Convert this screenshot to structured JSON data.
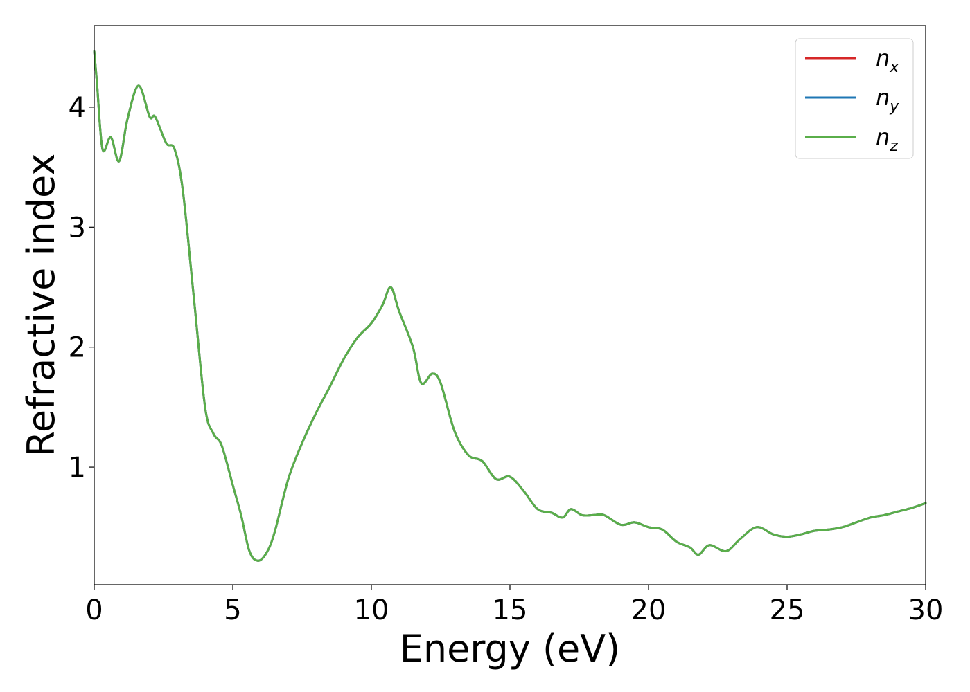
{
  "chart_data": {
    "type": "line",
    "title": "",
    "xlabel": "Energy (eV)",
    "ylabel": "Refractive index",
    "xlim": [
      0,
      30
    ],
    "ylim": [
      0.02,
      4.68
    ],
    "xticks": [
      0,
      5,
      10,
      15,
      20,
      25,
      30
    ],
    "yticks": [
      1,
      2,
      3,
      4
    ],
    "grid": false,
    "legend_position": "top-right",
    "x": [
      0,
      0.1,
      0.3,
      0.6,
      0.9,
      1.2,
      1.6,
      2.0,
      2.2,
      2.6,
      2.9,
      3.2,
      3.6,
      4.0,
      4.3,
      4.6,
      5.0,
      5.3,
      5.6,
      5.9,
      6.2,
      6.5,
      7.0,
      7.5,
      8.0,
      8.5,
      9.0,
      9.5,
      10.0,
      10.4,
      10.7,
      11.0,
      11.5,
      11.8,
      12.2,
      12.5,
      13.0,
      13.5,
      14.0,
      14.5,
      15.0,
      15.5,
      16.0,
      16.5,
      16.9,
      17.2,
      17.6,
      18.0,
      18.4,
      19.0,
      19.5,
      20.0,
      20.5,
      21.0,
      21.5,
      21.8,
      22.2,
      22.8,
      23.3,
      23.9,
      24.5,
      25.0,
      25.5,
      26.0,
      26.5,
      27.0,
      27.5,
      28.0,
      28.5,
      29.0,
      29.5,
      30.0
    ],
    "series": [
      {
        "name": "n_x",
        "color": "#d62728",
        "values": [
          4.47,
          4.2,
          3.65,
          3.75,
          3.55,
          3.9,
          4.18,
          3.92,
          3.92,
          3.7,
          3.65,
          3.3,
          2.4,
          1.5,
          1.28,
          1.18,
          0.85,
          0.6,
          0.3,
          0.22,
          0.28,
          0.45,
          0.9,
          1.2,
          1.45,
          1.67,
          1.9,
          2.08,
          2.2,
          2.35,
          2.5,
          2.3,
          2.0,
          1.7,
          1.78,
          1.7,
          1.3,
          1.1,
          1.05,
          0.9,
          0.92,
          0.8,
          0.65,
          0.62,
          0.58,
          0.65,
          0.6,
          0.6,
          0.6,
          0.52,
          0.54,
          0.5,
          0.48,
          0.38,
          0.33,
          0.27,
          0.35,
          0.3,
          0.4,
          0.5,
          0.44,
          0.42,
          0.44,
          0.47,
          0.48,
          0.5,
          0.54,
          0.58,
          0.6,
          0.63,
          0.66,
          0.7
        ]
      },
      {
        "name": "n_y",
        "color": "#1f77b4",
        "values": [
          4.47,
          4.2,
          3.65,
          3.75,
          3.55,
          3.9,
          4.18,
          3.92,
          3.92,
          3.7,
          3.65,
          3.3,
          2.4,
          1.5,
          1.28,
          1.18,
          0.85,
          0.6,
          0.3,
          0.22,
          0.28,
          0.45,
          0.9,
          1.2,
          1.45,
          1.67,
          1.9,
          2.08,
          2.2,
          2.35,
          2.5,
          2.3,
          2.0,
          1.7,
          1.78,
          1.7,
          1.3,
          1.1,
          1.05,
          0.9,
          0.92,
          0.8,
          0.65,
          0.62,
          0.58,
          0.65,
          0.6,
          0.6,
          0.6,
          0.52,
          0.54,
          0.5,
          0.48,
          0.38,
          0.33,
          0.27,
          0.35,
          0.3,
          0.4,
          0.5,
          0.44,
          0.42,
          0.44,
          0.47,
          0.48,
          0.5,
          0.54,
          0.58,
          0.6,
          0.63,
          0.66,
          0.7
        ]
      },
      {
        "name": "n_z",
        "color": "#5aae4a",
        "values": [
          4.47,
          4.2,
          3.65,
          3.75,
          3.55,
          3.9,
          4.18,
          3.92,
          3.92,
          3.7,
          3.65,
          3.3,
          2.4,
          1.5,
          1.28,
          1.18,
          0.85,
          0.6,
          0.3,
          0.22,
          0.28,
          0.45,
          0.9,
          1.2,
          1.45,
          1.67,
          1.9,
          2.08,
          2.2,
          2.35,
          2.5,
          2.3,
          2.0,
          1.7,
          1.78,
          1.7,
          1.3,
          1.1,
          1.05,
          0.9,
          0.92,
          0.8,
          0.65,
          0.62,
          0.58,
          0.65,
          0.6,
          0.6,
          0.6,
          0.52,
          0.54,
          0.5,
          0.48,
          0.38,
          0.33,
          0.27,
          0.35,
          0.3,
          0.4,
          0.5,
          0.44,
          0.42,
          0.44,
          0.47,
          0.48,
          0.5,
          0.54,
          0.58,
          0.6,
          0.63,
          0.66,
          0.7
        ]
      }
    ],
    "legend": [
      {
        "symbol": "n",
        "subscript": "x",
        "color": "#d62728"
      },
      {
        "symbol": "n",
        "subscript": "y",
        "color": "#1f77b4"
      },
      {
        "symbol": "n",
        "subscript": "z",
        "color": "#5aae4a"
      }
    ]
  }
}
